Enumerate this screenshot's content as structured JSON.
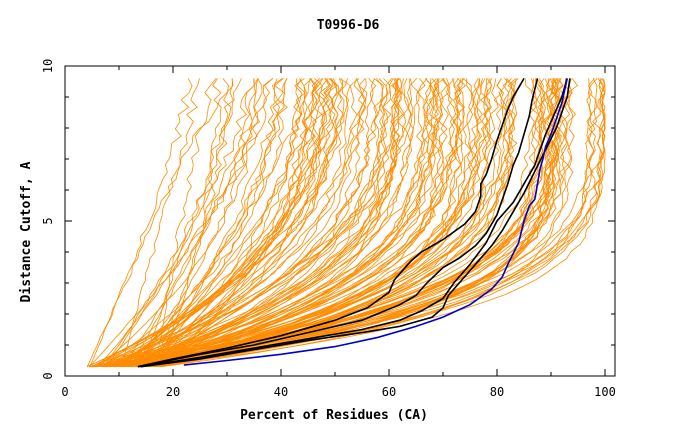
{
  "chart_data": {
    "type": "line",
    "title": "T0996-D6",
    "xlabel": "Percent of Residues (CA)",
    "ylabel": "Distance Cutoff, A",
    "xlim": [
      0,
      100
    ],
    "ylim": [
      0,
      10
    ],
    "x_ticks": [
      "0",
      "20",
      "40",
      "60",
      "80",
      "100"
    ],
    "y_ticks": [
      "0",
      "5",
      "10"
    ],
    "grid": false,
    "colors": {
      "background_models": "#ff8c00",
      "highlight_black": "#000000",
      "highlight_blue": "#0000cc"
    },
    "series": [
      {
        "color": "#000000",
        "x": [
          13.5,
          20,
          30,
          40,
          50,
          56,
          60,
          61,
          62,
          64,
          66,
          70,
          74,
          76,
          77,
          77,
          78,
          79,
          80,
          81,
          82,
          83,
          84,
          85
        ],
        "y": [
          0.3,
          0.55,
          0.9,
          1.3,
          1.8,
          2.2,
          2.7,
          3.1,
          3.3,
          3.7,
          4.0,
          4.4,
          4.9,
          5.3,
          5.8,
          6.2,
          6.5,
          7.0,
          7.6,
          8.1,
          8.6,
          9.0,
          9.3,
          9.6
        ]
      },
      {
        "color": "#000000",
        "x": [
          13.5,
          25,
          35,
          45,
          55,
          62,
          65,
          67,
          70,
          73,
          76,
          78,
          80,
          81,
          82,
          83,
          84,
          85,
          86,
          86.5,
          87.5
        ],
        "y": [
          0.3,
          0.7,
          1.0,
          1.4,
          1.8,
          2.3,
          2.6,
          3.0,
          3.5,
          3.8,
          4.2,
          4.6,
          5.2,
          5.7,
          6.2,
          6.8,
          7.2,
          7.8,
          8.4,
          8.9,
          9.6
        ]
      },
      {
        "color": "#000000",
        "x": [
          14,
          25,
          35,
          45,
          55,
          62,
          66,
          70,
          72,
          75,
          78,
          80,
          83,
          85,
          87,
          88,
          89,
          90,
          91,
          92,
          93
        ],
        "y": [
          0.3,
          0.6,
          0.9,
          1.2,
          1.5,
          1.8,
          2.1,
          2.5,
          3.0,
          3.6,
          4.3,
          5.0,
          5.6,
          6.2,
          6.8,
          7.3,
          7.8,
          8.2,
          8.6,
          9.0,
          9.6
        ]
      },
      {
        "color": "#000000",
        "x": [
          14,
          25,
          35,
          45,
          55,
          62,
          68,
          70,
          71,
          73,
          75,
          77,
          79,
          81,
          83,
          85,
          87,
          89,
          91,
          92,
          93,
          93.5
        ],
        "y": [
          0.3,
          0.55,
          0.85,
          1.15,
          1.4,
          1.6,
          1.9,
          2.2,
          2.6,
          3.0,
          3.4,
          3.8,
          4.2,
          4.7,
          5.3,
          5.9,
          6.6,
          7.3,
          8.0,
          8.5,
          9.0,
          9.6
        ]
      },
      {
        "color": "#0000cc",
        "x": [
          22,
          30,
          40,
          50,
          58,
          65,
          70,
          75,
          79,
          81,
          82,
          84,
          85,
          86,
          87,
          87.5,
          88,
          88.5,
          89,
          90,
          91,
          92,
          93
        ],
        "y": [
          0.35,
          0.5,
          0.7,
          0.95,
          1.25,
          1.6,
          1.9,
          2.3,
          2.8,
          3.2,
          3.6,
          4.3,
          5.0,
          5.5,
          5.7,
          6.2,
          6.7,
          7.0,
          7.4,
          7.8,
          8.3,
          8.8,
          9.6
        ]
      }
    ]
  }
}
